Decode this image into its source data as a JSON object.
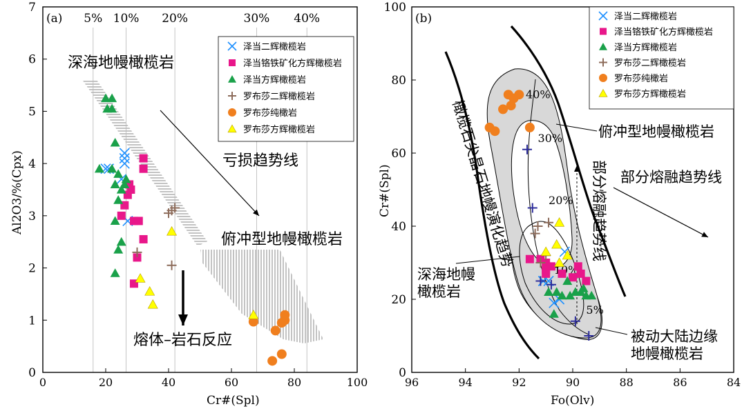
{
  "colors": {
    "cross": "#1e90ff",
    "square": "#e8178a",
    "triangle": "#1aa14a",
    "plus": "#8c6b5a",
    "circle": "#f07f1e",
    "ytriangle": "#ffff00",
    "ytriangle_edge": "#b8a000",
    "plus_b": "#2b2b9a",
    "field_fill": "#d8d8d8",
    "hatch": "#9a9a9a"
  },
  "legend": [
    {
      "marker": "cross",
      "label": "泽当二辉橄榄岩"
    },
    {
      "marker": "square",
      "label": "泽当铬铁矿化方辉橄榄岩"
    },
    {
      "marker": "triangle",
      "label": "泽当方辉橄榄岩"
    },
    {
      "marker": "plus",
      "label": "罗布莎二辉橄榄岩"
    },
    {
      "marker": "circle",
      "label": "罗布莎纯橄岩"
    },
    {
      "marker": "ytriangle",
      "label": "罗布莎方辉橄榄岩"
    }
  ],
  "chart_data": [
    {
      "type": "scatter",
      "panel_label": "(a)",
      "xlabel": "Cr#(Spl)",
      "ylabel": "Al2O3/%(Cpx)",
      "xlim": [
        0,
        100
      ],
      "ylim": [
        0,
        7
      ],
      "xticks": [
        0,
        20,
        40,
        60,
        80,
        100
      ],
      "yticks": [
        0,
        1,
        2,
        3,
        4,
        5,
        6,
        7
      ],
      "top_labels": [
        {
          "x": 16,
          "text": "5%"
        },
        {
          "x": 26.5,
          "text": "10%"
        },
        {
          "x": 42,
          "text": "20%"
        },
        {
          "x": 68,
          "text": "30%"
        },
        {
          "x": 84,
          "text": "40%"
        }
      ],
      "annotations": {
        "abyssal": "深海地幔橄榄岩",
        "depletion": "亏损趋势线",
        "suprasubduction": "俯冲型地幔橄榄岩",
        "reaction": "熔体–岩石反应"
      },
      "series": [
        {
          "marker": "cross",
          "points": [
            [
              20,
              3.9
            ],
            [
              21,
              3.9
            ],
            [
              25,
              3.7
            ],
            [
              26,
              4.0
            ],
            [
              26,
              4.2
            ],
            [
              26,
              4.1
            ],
            [
              27,
              2.9
            ]
          ]
        },
        {
          "marker": "square",
          "points": [
            [
              25,
              3.0
            ],
            [
              26,
              3.2
            ],
            [
              27,
              3.4
            ],
            [
              27.5,
              3.6
            ],
            [
              29,
              2.9
            ],
            [
              30,
              2.2
            ],
            [
              30.5,
              2.9
            ],
            [
              32,
              2.55
            ],
            [
              32,
              3.9
            ],
            [
              32,
              4.1
            ],
            [
              29,
              1.7
            ],
            [
              28,
              3.5
            ]
          ]
        },
        {
          "marker": "triangle",
          "points": [
            [
              18,
              3.9
            ],
            [
              20,
              5.25
            ],
            [
              22,
              5.25
            ],
            [
              20.5,
              5.05
            ],
            [
              22,
              5.05
            ],
            [
              23,
              4.4
            ],
            [
              22,
              3.9
            ],
            [
              24,
              3.8
            ],
            [
              23,
              3.6
            ],
            [
              25,
              3.5
            ],
            [
              26,
              3.6
            ],
            [
              26.5,
              3.7
            ],
            [
              23,
              2.9
            ],
            [
              25,
              2.5
            ],
            [
              24,
              2.35
            ],
            [
              23,
              1.9
            ],
            [
              24,
              3.3
            ]
          ]
        },
        {
          "marker": "plus",
          "points": [
            [
              40,
              3.05
            ],
            [
              41,
              3.1
            ],
            [
              42,
              3.15
            ],
            [
              30,
              2.3
            ],
            [
              41,
              2.05
            ]
          ]
        },
        {
          "marker": "circle",
          "points": [
            [
              67,
              0.97
            ],
            [
              74,
              0.8
            ],
            [
              76,
              0.95
            ],
            [
              77,
              1.0
            ],
            [
              77,
              1.1
            ],
            [
              73,
              0.22
            ],
            [
              76,
              0.35
            ]
          ]
        },
        {
          "marker": "ytriangle",
          "points": [
            [
              41,
              2.7
            ],
            [
              31,
              1.8
            ],
            [
              34,
              1.55
            ],
            [
              35,
              1.3
            ],
            [
              67,
              1.1
            ]
          ]
        }
      ]
    },
    {
      "type": "scatter",
      "panel_label": "(b)",
      "xlabel": "Fo(Olv)",
      "ylabel": "Cr#(Spl)",
      "xlim": [
        96,
        84
      ],
      "ylim": [
        0,
        100
      ],
      "xticks": [
        96,
        94,
        92,
        90,
        88,
        86,
        84
      ],
      "yticks": [
        0,
        20,
        40,
        60,
        80,
        100
      ],
      "melt_labels": [
        {
          "x": 91.75,
          "y": 75,
          "text": "40%"
        },
        {
          "x": 91.3,
          "y": 63,
          "text": "30%"
        },
        {
          "x": 90.9,
          "y": 46,
          "text": "20%"
        },
        {
          "x": 90.7,
          "y": 27,
          "text": "10%"
        },
        {
          "x": 89.5,
          "y": 16,
          "text": "5%"
        }
      ],
      "annotations": {
        "olivine_array": "橄榄石尖晶石地幔演化趋势",
        "suprasubduction": "俯冲型地幔橄榄岩",
        "partial_melting": "部分熔融趋势线",
        "abyssal_line1": "深海地幔",
        "abyssal_line2": "橄榄岩",
        "passive_line1": "被动大陆边缘",
        "passive_line2": "地幔橄榄岩"
      },
      "series": [
        {
          "marker": "cross",
          "points": [
            [
              90.9,
              25
            ],
            [
              90.3,
              33
            ],
            [
              90.5,
              20
            ],
            [
              90.7,
              19
            ],
            [
              91.1,
              25
            ]
          ]
        },
        {
          "marker": "square",
          "points": [
            [
              91.6,
              31
            ],
            [
              91.2,
              31
            ],
            [
              91.0,
              30
            ],
            [
              90.8,
              29
            ],
            [
              91.0,
              27
            ],
            [
              90.4,
              27
            ],
            [
              90.0,
              26
            ],
            [
              89.8,
              29
            ],
            [
              89.7,
              27
            ],
            [
              89.5,
              25
            ],
            [
              91.0,
              28
            ]
          ]
        },
        {
          "marker": "triangle",
          "points": [
            [
              90.9,
              22
            ],
            [
              90.6,
              22
            ],
            [
              90.4,
              21
            ],
            [
              90.1,
              21
            ],
            [
              89.9,
              22
            ],
            [
              89.7,
              22
            ],
            [
              89.5,
              21
            ],
            [
              89.3,
              21
            ],
            [
              90.7,
              16
            ],
            [
              90.2,
              25
            ],
            [
              89.6,
              23
            ]
          ]
        },
        {
          "marker": "plus",
          "points": [
            [
              91.3,
              40
            ],
            [
              90.9,
              41
            ],
            [
              91.4,
              38
            ],
            [
              91.0,
              32
            ],
            [
              91.2,
              30
            ]
          ]
        },
        {
          "marker": "circle",
          "points": [
            [
              93.1,
              67
            ],
            [
              92.9,
              66
            ],
            [
              92.4,
              76
            ],
            [
              92.2,
              75
            ],
            [
              92.0,
              76
            ],
            [
              92.3,
              73
            ],
            [
              92.6,
              72
            ],
            [
              91.6,
              67
            ]
          ]
        },
        {
          "marker": "ytriangle",
          "points": [
            [
              91.0,
              33
            ],
            [
              90.6,
              35
            ],
            [
              90.5,
              41
            ],
            [
              90.5,
              30
            ],
            [
              90.2,
              32
            ]
          ]
        },
        {
          "marker": "plus_b",
          "points": [
            [
              91.7,
              61
            ],
            [
              91.5,
              45
            ],
            [
              91.2,
              25
            ],
            [
              90.8,
              24
            ],
            [
              89.9,
              14
            ],
            [
              89.4,
              10
            ]
          ]
        }
      ]
    }
  ]
}
